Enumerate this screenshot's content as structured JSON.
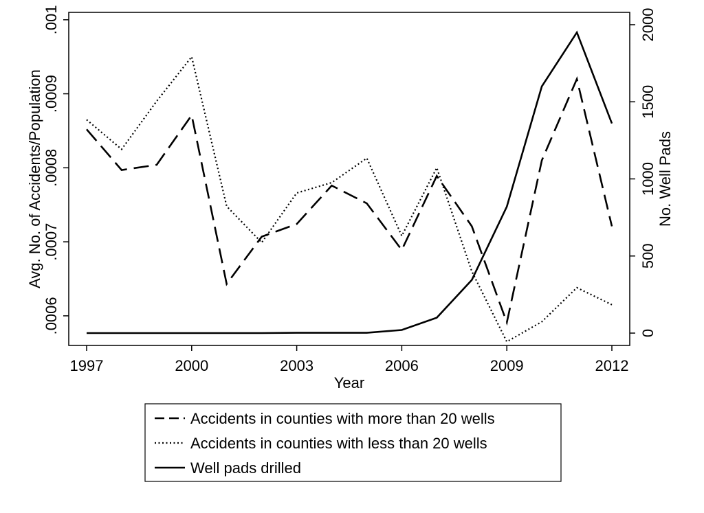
{
  "chart_data": {
    "type": "line",
    "title": "",
    "xlabel": "Year",
    "ylabel_left": "Avg. No. of Accidents/Population",
    "ylabel_right": "No. Well Pads",
    "x": [
      1997,
      1998,
      1999,
      2000,
      2001,
      2002,
      2003,
      2004,
      2005,
      2006,
      2007,
      2008,
      2009,
      2010,
      2011,
      2012
    ],
    "xticks": [
      "1997",
      "2000",
      "2003",
      "2006",
      "2009",
      "2012"
    ],
    "xlim": [
      1997,
      2012
    ],
    "ylim_left": [
      0.00056,
      0.00101
    ],
    "yticks_left": [
      ".0006",
      ".0007",
      ".0008",
      ".0009",
      ".001"
    ],
    "ylim_right": [
      -80,
      2080
    ],
    "yticks_right": [
      "0",
      "500",
      "1000",
      "1500",
      "2000"
    ],
    "series": [
      {
        "name": "Accidents in counties with more than 20 wells",
        "axis": "left",
        "style": "dashed",
        "values": [
          0.000852,
          0.000797,
          0.000804,
          0.000871,
          0.000643,
          0.000707,
          0.000724,
          0.000776,
          0.000752,
          0.000689,
          0.000789,
          0.000721,
          0.000591,
          0.00081,
          0.00092,
          0.000721
        ]
      },
      {
        "name": "Accidents in counties with less than 20 wells",
        "axis": "left",
        "style": "dotted",
        "values": [
          0.000865,
          0.000825,
          0.00089,
          0.00095,
          0.000748,
          0.000699,
          0.000766,
          0.00078,
          0.000813,
          0.000708,
          0.0008,
          0.00066,
          0.000565,
          0.000592,
          0.000638,
          0.000615
        ]
      },
      {
        "name": "Well pads drilled",
        "axis": "right",
        "style": "solid",
        "values": [
          0,
          0,
          0,
          0,
          0,
          0,
          2,
          2,
          2,
          20,
          100,
          345,
          820,
          1600,
          1950,
          1360
        ]
      }
    ],
    "legend_position": "bottom"
  }
}
